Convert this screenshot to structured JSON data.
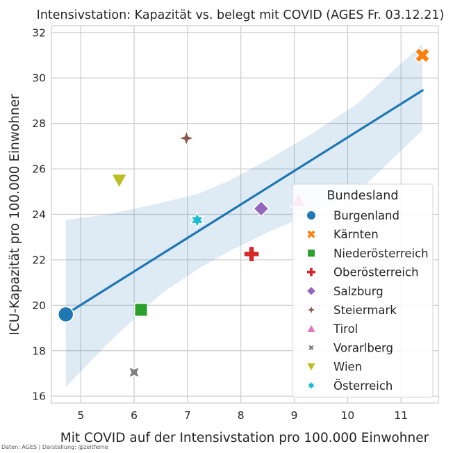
{
  "chart_data": {
    "type": "scatter",
    "title": "Intensivstation: Kapazität vs. belegt mit COVID (AGES Fr. 03.12.21)",
    "xlabel": "Mit COVID auf der Intensivstation pro 100.000 Einwohner",
    "ylabel": "ICU-Kapazität pro 100.000 Einwohner",
    "xlim": [
      4.45,
      11.7
    ],
    "ylim": [
      15.7,
      32.3
    ],
    "x_ticks": [
      "5",
      "6",
      "7",
      "8",
      "9",
      "10",
      "11"
    ],
    "y_ticks": [
      "16",
      "18",
      "20",
      "22",
      "24",
      "26",
      "28",
      "30",
      "32"
    ],
    "grid": true,
    "legend": {
      "title": "Bundesland",
      "placement": "lower-right"
    },
    "series": [
      {
        "name": "Burgenland",
        "x": 4.72,
        "y": 19.6,
        "color": "#1f77b4",
        "marker": "circle"
      },
      {
        "name": "Kärnten",
        "x": 11.4,
        "y": 31.0,
        "color": "#ff7f0e",
        "marker": "x"
      },
      {
        "name": "Niederösterreich",
        "x": 6.13,
        "y": 19.8,
        "color": "#2ca02c",
        "marker": "square"
      },
      {
        "name": "Oberösterreich",
        "x": 8.2,
        "y": 22.25,
        "color": "#d62728",
        "marker": "plus"
      },
      {
        "name": "Salzburg",
        "x": 8.38,
        "y": 24.25,
        "color": "#9467bd",
        "marker": "diamond"
      },
      {
        "name": "Steiermark",
        "x": 6.98,
        "y": 27.35,
        "color": "#8c564b",
        "marker": "star4"
      },
      {
        "name": "Tirol",
        "x": 9.08,
        "y": 24.6,
        "color": "#e377c2",
        "marker": "triangle-up"
      },
      {
        "name": "Vorarlberg",
        "x": 6.0,
        "y": 17.05,
        "color": "#7f7f7f",
        "marker": "x-concave"
      },
      {
        "name": "Wien",
        "x": 5.72,
        "y": 25.5,
        "color": "#bcbd22",
        "marker": "triangle-down"
      },
      {
        "name": "Österreich",
        "x": 7.18,
        "y": 23.75,
        "color": "#17becf",
        "marker": "star6"
      }
    ],
    "regression": {
      "line": [
        [
          4.72,
          19.6
        ],
        [
          11.4,
          29.45
        ]
      ],
      "ci_upper": [
        [
          4.72,
          23.75
        ],
        [
          5.5,
          24.0
        ],
        [
          6.5,
          24.5
        ],
        [
          7.2,
          24.9
        ],
        [
          7.8,
          25.5
        ],
        [
          8.5,
          26.4
        ],
        [
          9.3,
          27.5
        ],
        [
          10.2,
          28.9
        ],
        [
          11.4,
          31.5
        ]
      ],
      "ci_lower": [
        [
          4.72,
          16.4
        ],
        [
          5.5,
          18.3
        ],
        [
          6.5,
          20.5
        ],
        [
          7.2,
          21.6
        ],
        [
          7.8,
          22.4
        ],
        [
          8.5,
          23.2
        ],
        [
          9.3,
          24.0
        ],
        [
          10.2,
          25.0
        ],
        [
          11.4,
          27.7
        ]
      ],
      "color": "#1f77b4"
    }
  },
  "credit": "Daten: AGES | Darstellung: @zeitferne"
}
